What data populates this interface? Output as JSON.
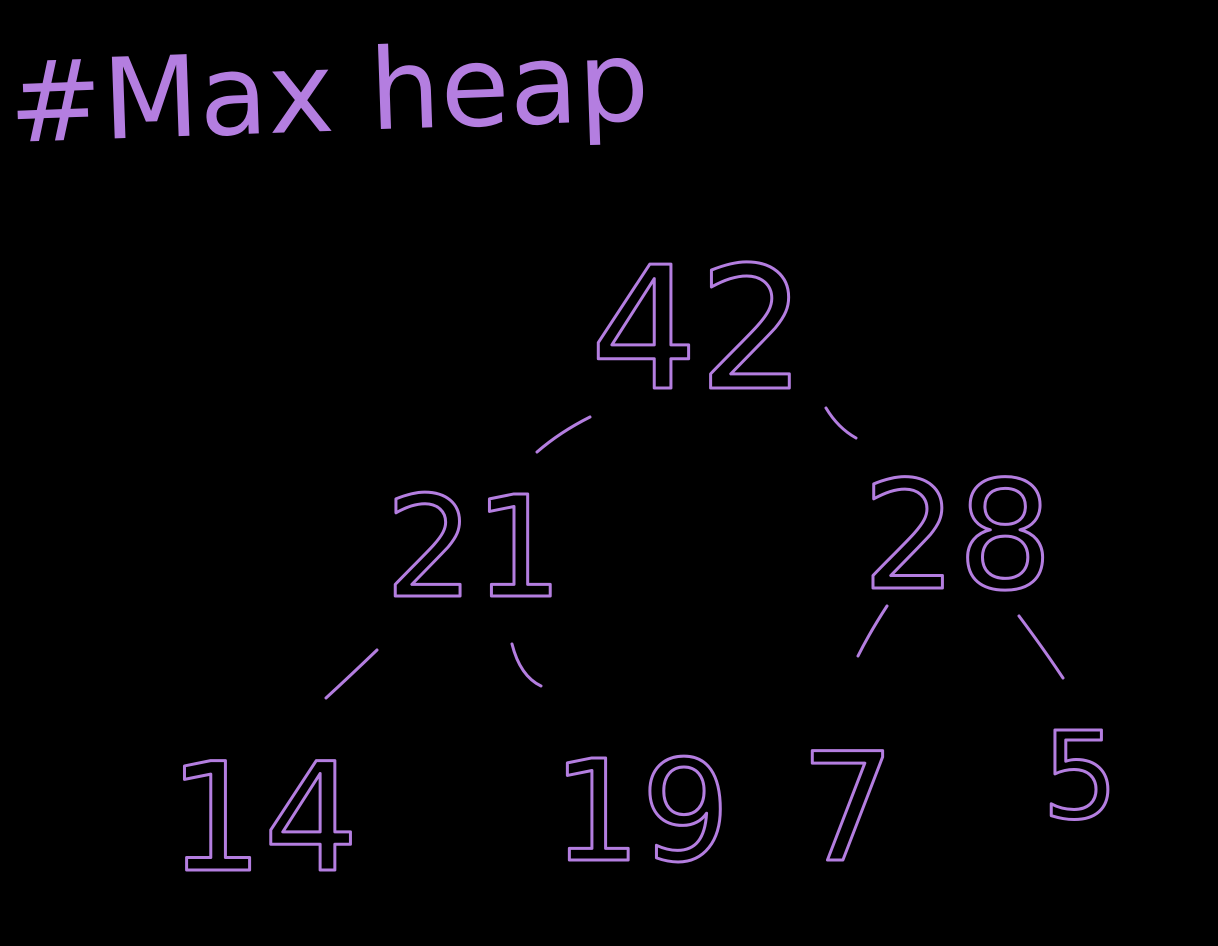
{
  "title": "#Max heap",
  "ink_color": "#b47ee0",
  "background_color": "#000000",
  "heap": {
    "root": "42",
    "level1": [
      "21",
      "28"
    ],
    "level2": [
      "14",
      "19",
      "7",
      "5"
    ]
  }
}
